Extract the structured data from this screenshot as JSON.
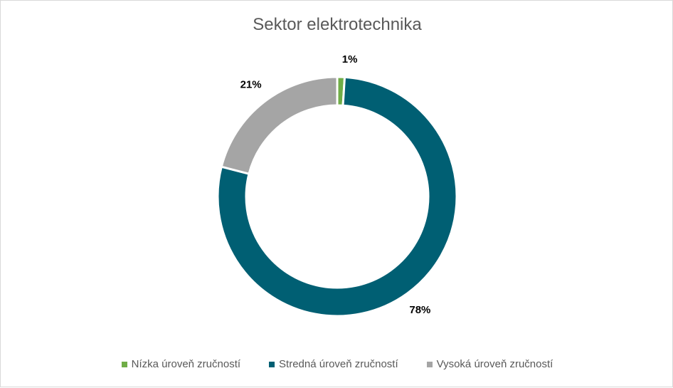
{
  "chart_data": {
    "type": "pie",
    "variant": "doughnut",
    "title": "Sektor elektrotechnika",
    "categories": [
      "Nízka úroveň zručností",
      "Stredná úroveň zručností",
      "Vysoká úroveň zručností"
    ],
    "values": [
      1,
      78,
      21
    ],
    "labels": [
      "1%",
      "78%",
      "21%"
    ],
    "colors": [
      "#70ad47",
      "#005f73",
      "#a5a5a5"
    ],
    "legend": "bottom"
  }
}
